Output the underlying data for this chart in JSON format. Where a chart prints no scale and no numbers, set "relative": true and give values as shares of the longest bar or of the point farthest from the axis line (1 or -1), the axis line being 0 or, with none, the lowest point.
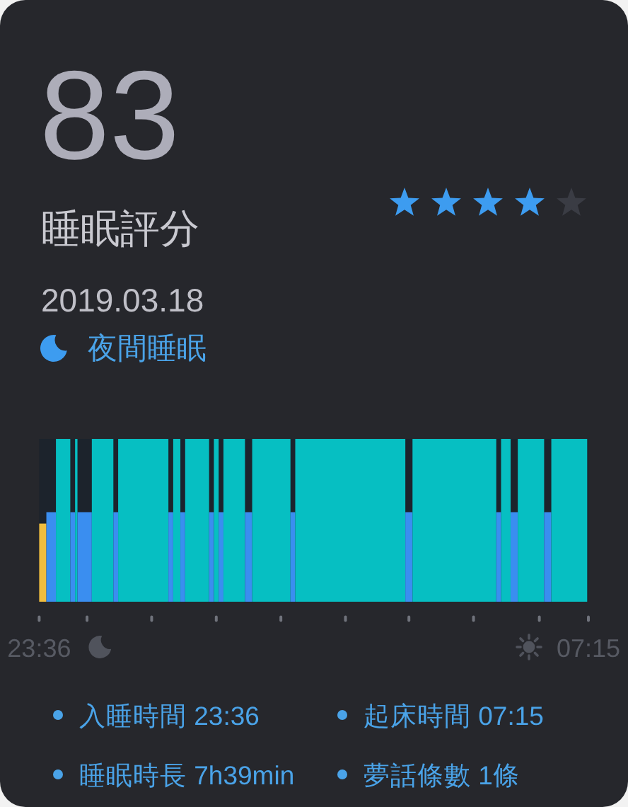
{
  "chart_data": [
    {
      "type": "other",
      "title": "83",
      "subtitle": "睡眠評分",
      "categories": [
        null,
        null,
        null,
        null,
        null
      ],
      "colors": [
        "#3d9cf0",
        "#3d9cf0",
        "#3d9cf0",
        "#3d9cf0",
        "#3a3c44"
      ]
    },
    {
      "type": "bar",
      "title": "2019.03.18",
      "subtitle": "夜間睡眠",
      "relative": true,
      "x": [
        "2019-03-17T23:39",
        "2019-03-17T23:46",
        "2019-03-17T23:56",
        "2019-03-18T00:04",
        "2019-03-18T00:07",
        "2019-03-18T00:14",
        "2019-03-18T00:29",
        "2019-03-18T00:40",
        "2019-03-18T01:03",
        "2019-03-18T01:26",
        "2019-03-18T01:31",
        "2019-03-18T01:36",
        "2019-03-18T01:48",
        "2019-03-18T02:00",
        "2019-03-18T02:04",
        "2019-03-18T02:08",
        "2019-03-18T02:19",
        "2019-03-18T02:31",
        "2019-03-18T02:50",
        "2019-03-18T03:08",
        "2019-03-18T03:56",
        "2019-03-18T04:45",
        "2019-03-18T05:23",
        "2019-03-18T06:00",
        "2019-03-18T06:06",
        "2019-03-18T06:13",
        "2019-03-18T06:27",
        "2019-03-18T06:41",
        "2019-03-18T06:59"
      ],
      "values": [
        0.48,
        0.55,
        1,
        0.55,
        1,
        0.55,
        1,
        0.55,
        1,
        0.55,
        1,
        0.55,
        1,
        0.55,
        1,
        0.55,
        1,
        0.55,
        1,
        0.55,
        1,
        0.55,
        1,
        0.55,
        1,
        0.55,
        1,
        0.55,
        1
      ],
      "colors": [
        "#f0bd3f",
        "#3a8ef0",
        "#06bfc2",
        "#3a8ef0",
        "#06bfc2",
        "#3a8ef0",
        "#06bfc2",
        "#3a8ef0",
        "#06bfc2",
        "#3a8ef0",
        "#06bfc2",
        "#3a8ef0",
        "#06bfc2",
        "#3a8ef0",
        "#06bfc2",
        "#3a8ef0",
        "#06bfc2",
        "#3a8ef0",
        "#06bfc2",
        "#3a8ef0",
        "#06bfc2",
        "#3a8ef0",
        "#06bfc2",
        "#3a8ef0",
        "#06bfc2",
        "#3a8ef0",
        "#06bfc2",
        "#3a8ef0",
        "#06bfc2"
      ],
      "xlim": [
        "2019-03-17T23:36",
        "2019-03-18T07:15"
      ],
      "xticks": [
        {
          "value": "2019-03-17T23:36",
          "label": "23:36"
        },
        {
          "value": "2019-03-18T00:16",
          "label": null
        },
        {
          "value": "2019-03-18T01:10",
          "label": null
        },
        {
          "value": "2019-03-18T02:04",
          "label": null
        },
        {
          "value": "2019-03-18T02:58",
          "label": null
        },
        {
          "value": "2019-03-18T03:52",
          "label": null
        },
        {
          "value": "2019-03-18T04:45",
          "label": null
        },
        {
          "value": "2019-03-18T05:39",
          "label": null
        },
        {
          "value": "2019-03-18T06:34",
          "label": null
        },
        {
          "value": "2019-03-18T07:15",
          "label": "07:15"
        }
      ],
      "annotations": [
        "入睡時間 23:36",
        "起床時間 07:15",
        "睡眠時長 7h39min",
        "夢話條數 1條"
      ]
    }
  ]
}
